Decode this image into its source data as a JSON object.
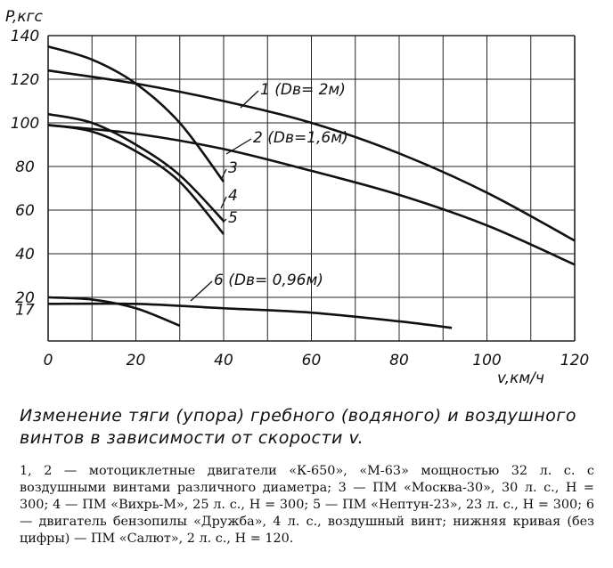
{
  "chart_data": {
    "type": "line",
    "y_axis_label": "P,кгс",
    "x_axis_label": "v,км/ч",
    "xlim": [
      0,
      120
    ],
    "ylim": [
      0,
      140
    ],
    "x_ticks": [
      "0",
      "20",
      "40",
      "60",
      "80",
      "100",
      "120"
    ],
    "y_ticks": [
      "20",
      "40",
      "60",
      "80",
      "100",
      "120",
      "140"
    ],
    "extra_y_tick": "17",
    "grid": true,
    "series": [
      {
        "name": "1 (Dв= 2м)",
        "x": [
          0,
          20,
          40,
          60,
          80,
          100,
          120
        ],
        "y": [
          124,
          118,
          110,
          100,
          86,
          68,
          46
        ]
      },
      {
        "name": "2 (Dв=1,6м)",
        "x": [
          0,
          20,
          40,
          60,
          80,
          100,
          120
        ],
        "y": [
          99,
          95,
          88,
          78,
          67,
          53,
          35
        ]
      },
      {
        "name": "3",
        "x": [
          0,
          10,
          20,
          30,
          40
        ],
        "y": [
          135,
          129,
          118,
          100,
          73
        ]
      },
      {
        "name": "4",
        "x": [
          0,
          10,
          20,
          30,
          40
        ],
        "y": [
          104,
          100,
          90,
          76,
          55
        ]
      },
      {
        "name": "5",
        "x": [
          0,
          10,
          20,
          30,
          40
        ],
        "y": [
          99,
          96,
          87,
          73,
          49
        ]
      },
      {
        "name": "6 (Dв= 0,96м)",
        "x": [
          0,
          10,
          20,
          30
        ],
        "y": [
          20,
          19,
          15,
          7
        ]
      },
      {
        "name": "",
        "x": [
          0,
          20,
          40,
          60,
          80,
          92
        ],
        "y": [
          17,
          17,
          15,
          13,
          9,
          6
        ]
      }
    ],
    "colors": {
      "line": "#111111",
      "grid": "#222222",
      "background": "#ffffff"
    }
  },
  "caption": {
    "title": "Изменение тяги (упора) гребного (водяного) и воздушного винтов в зависимости от скорости v.",
    "note": "1, 2 — мотоциклетные двигатели «К-650», «М-63» мощностью 32 л. с. с воздушными винтами различного диаметра; 3 — ПМ «Москва-30», 30 л. с., H = 300; 4 — ПМ «Вихрь-М», 25 л. с., H = 300; 5 — ПМ «Нептун-23», 23 л. с., H = 300; 6 — двигатель бензопилы «Дружба», 4 л. с., воздушный винт; нижняя кривая (без цифры) — ПМ «Салют», 2 л. с., H = 120."
  }
}
